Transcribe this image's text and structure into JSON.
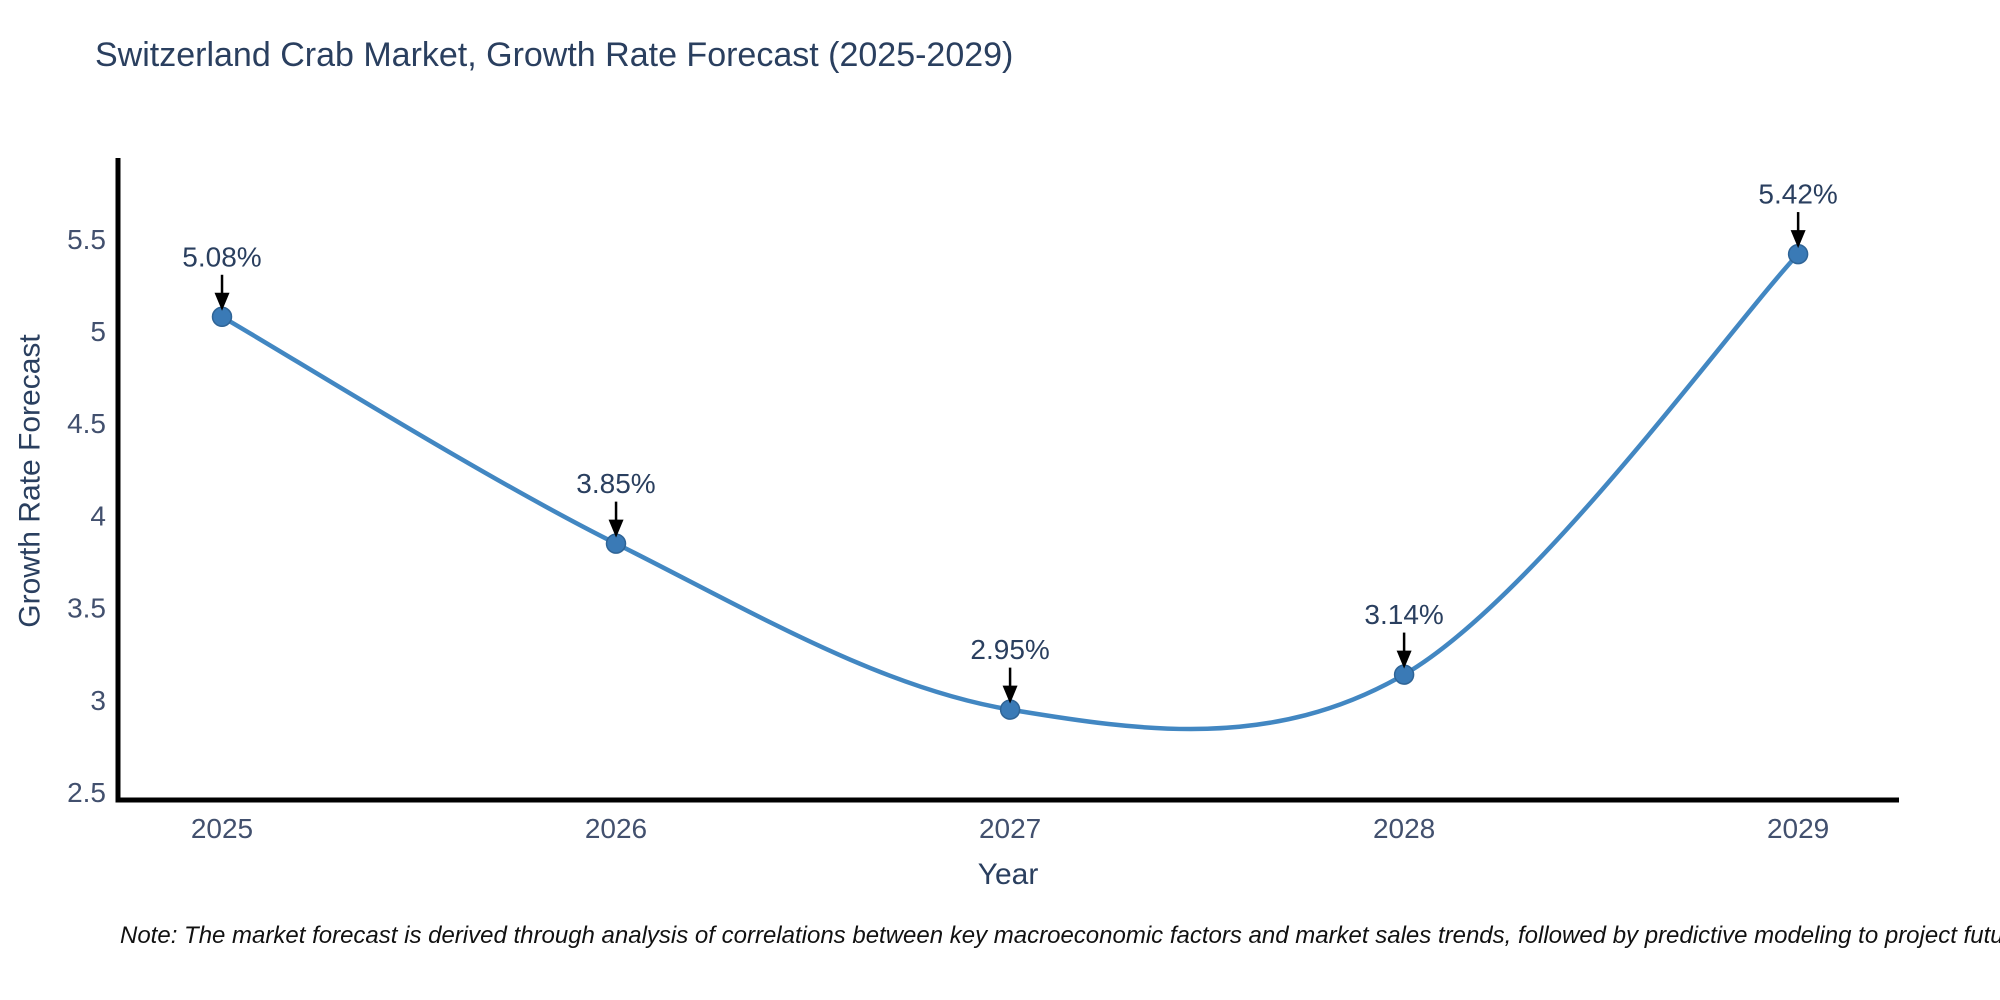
{
  "title": "Switzerland Crab Market, Growth Rate Forecast (2025-2029)",
  "note": "Note: The market forecast is derived through analysis of correlations between key macroeconomic factors and market sales trends, followed by predictive modeling to project future sales",
  "chart_data": {
    "type": "line",
    "title": "Switzerland Crab Market, Growth Rate Forecast (2025-2029)",
    "xlabel": "Year",
    "ylabel": "Growth Rate Forecast",
    "x": [
      2025,
      2026,
      2027,
      2028,
      2029
    ],
    "values": [
      5.08,
      3.85,
      2.95,
      3.14,
      5.42
    ],
    "point_labels": [
      "5.08%",
      "3.85%",
      "2.95%",
      "3.14%",
      "5.42%"
    ],
    "yticks": [
      2.5,
      3,
      3.5,
      4,
      4.5,
      5,
      5.5
    ],
    "xticks": [
      2025,
      2026,
      2027,
      2028,
      2029
    ],
    "xlim": [
      2024.736,
      2029.256
    ],
    "ylim": [
      2.46,
      5.93
    ],
    "line_shape": "spline",
    "grid": false,
    "legend": "none",
    "line_color": "#4287c2",
    "marker_color": "#3a7ab6",
    "marker_edge_color": "#2f6496",
    "axis_color": "#000000",
    "annotation_arrow_color": "#000000",
    "text_color": "#2a3f5f"
  }
}
